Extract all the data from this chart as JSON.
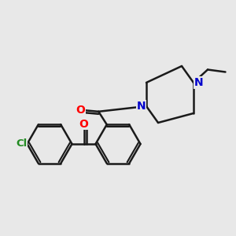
{
  "bg_color": "#e8e8e8",
  "bond_color": "#1a1a1a",
  "bond_width": 1.8,
  "atom_colors": {
    "O": "#ff0000",
    "N": "#0000cc",
    "Cl": "#228b22",
    "C": "#1a1a1a"
  },
  "figsize": [
    3.0,
    3.0
  ],
  "dpi": 100,
  "xlim": [
    0,
    10
  ],
  "ylim": [
    0,
    10
  ]
}
